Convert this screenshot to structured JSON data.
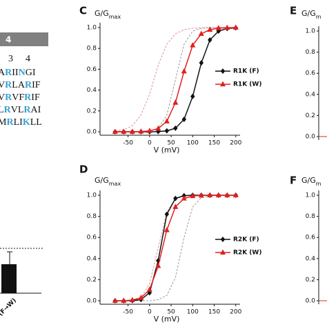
{
  "left_panel": {
    "header": "4",
    "columns": [
      "3",
      "4"
    ],
    "rows": [
      "ARIINGI",
      "VRLARIF",
      "VRVFRIF",
      "LRVLRAI",
      "MRLIKLL"
    ],
    "highlight": [
      1,
      4
    ],
    "highlight_color": "#3aa0d0"
  },
  "bar_fragment": {
    "label": "K (F→W)"
  },
  "chart_data": [
    {
      "type": "line",
      "panel": "C",
      "ylabel": "G/G",
      "ylabel_sub": "max",
      "xlabel": "V (mV)",
      "x": [
        -80,
        -60,
        -40,
        -20,
        0,
        20,
        40,
        60,
        80,
        100,
        120,
        140,
        160,
        180,
        200
      ],
      "series": [
        {
          "color": "#e88a9a",
          "dashed": true,
          "values": [
            0.007,
            0.02,
            0.058,
            0.16,
            0.36,
            0.64,
            0.84,
            0.94,
            0.98,
            0.993,
            0.998,
            1,
            1,
            1,
            1
          ]
        },
        {
          "color": "#999999",
          "dashed": true,
          "values": [
            0,
            0,
            0,
            0.001,
            0.007,
            0.034,
            0.16,
            0.5,
            0.84,
            0.966,
            0.993,
            0.999,
            1,
            1,
            1
          ]
        },
        {
          "name": "R1K (F)",
          "color": "#111111",
          "marker": "diamond",
          "values": [
            0,
            0,
            0,
            0,
            0,
            0.002,
            0.009,
            0.034,
            0.119,
            0.339,
            0.661,
            0.881,
            0.966,
            0.991,
            0.998
          ]
        },
        {
          "name": "R1K (W)",
          "color": "#e02020",
          "marker": "triangle",
          "values": [
            0,
            0,
            0,
            0.003,
            0.009,
            0.031,
            0.1,
            0.28,
            0.58,
            0.83,
            0.94,
            0.98,
            0.995,
            0.998,
            1
          ]
        }
      ],
      "xlim": [
        -115,
        210
      ],
      "xticks": [
        -50,
        0,
        50,
        100,
        150,
        200
      ],
      "ylim": [
        -0.033,
        1.046
      ],
      "yticks": [
        {
          "value": 0,
          "label": "0.0"
        },
        0.2,
        0.4,
        0.6,
        0.8,
        {
          "value": 1,
          "label": "1.0"
        }
      ],
      "legend": "center-right"
    },
    {
      "type": "line",
      "panel": "D",
      "ylabel": "G/G",
      "ylabel_sub": "max",
      "xlabel": "V (mV)",
      "x": [
        -80,
        -60,
        -40,
        -20,
        0,
        20,
        40,
        60,
        80,
        100,
        120,
        140,
        160,
        180,
        200
      ],
      "series": [
        {
          "color": "#e88a9a",
          "dashed": true,
          "values": [
            0,
            0.001,
            0.007,
            0.034,
            0.16,
            0.5,
            0.84,
            0.966,
            0.993,
            0.999,
            1,
            1,
            1,
            1,
            1
          ]
        },
        {
          "color": "#999999",
          "dashed": true,
          "values": [
            0,
            0,
            0,
            0,
            0,
            0.01,
            0.051,
            0.22,
            0.6,
            0.89,
            0.977,
            0.995,
            0.999,
            1,
            1
          ]
        },
        {
          "name": "R2K (F)",
          "color": "#111111",
          "marker": "diamond",
          "values": [
            0,
            0,
            0.0015,
            0.011,
            0.076,
            0.38,
            0.82,
            0.97,
            0.996,
            1,
            1,
            1,
            1,
            1,
            1
          ]
        },
        {
          "name": "R2K (W)",
          "color": "#e02020",
          "marker": "triangle",
          "values": [
            0,
            0,
            0.007,
            0.027,
            0.105,
            0.33,
            0.67,
            0.89,
            0.97,
            0.993,
            0.998,
            1,
            1,
            1,
            1
          ]
        }
      ],
      "xlim": [
        -115,
        210
      ],
      "xticks": [
        -50,
        0,
        50,
        100,
        150,
        200
      ],
      "ylim": [
        -0.033,
        1.046
      ],
      "yticks": [
        {
          "value": 0,
          "label": "0.0"
        },
        0.2,
        0.4,
        0.6,
        0.8,
        {
          "value": 1,
          "label": "1.0"
        }
      ],
      "legend": "center-right"
    },
    {
      "type": "line",
      "panel": "E",
      "ylabel": "G/G",
      "ylabel_sub": "m",
      "series": [],
      "ylim": [
        -0.033,
        1.046
      ],
      "yticks": [
        {
          "value": 0,
          "label": "0.0"
        },
        0.2,
        0.4,
        0.6,
        0.8,
        {
          "value": 1,
          "label": "1.0"
        }
      ]
    },
    {
      "type": "line",
      "panel": "F",
      "ylabel": "G/G",
      "ylabel_sub": "m",
      "series": [],
      "ylim": [
        -0.033,
        1.046
      ],
      "yticks": [
        {
          "value": 0,
          "label": "0.0"
        },
        0.2,
        0.4,
        0.6,
        0.8,
        {
          "value": 1,
          "label": "1.0"
        }
      ]
    }
  ]
}
